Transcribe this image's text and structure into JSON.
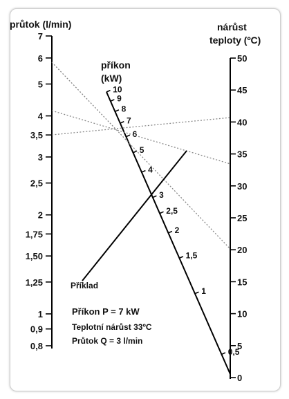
{
  "left_axis": {
    "title": "průtok (l/min)",
    "ticks": [
      {
        "label": "7",
        "value": 7
      },
      {
        "label": "6",
        "value": 6
      },
      {
        "label": "5",
        "value": 5
      },
      {
        "label": "4",
        "value": 4
      },
      {
        "label": "3,5",
        "value": 3.5
      },
      {
        "label": "3",
        "value": 3
      },
      {
        "label": "2,5",
        "value": 2.5
      },
      {
        "label": "2",
        "value": 2
      },
      {
        "label": "1,75",
        "value": 1.75
      },
      {
        "label": "1,50",
        "value": 1.5
      },
      {
        "label": "1,25",
        "value": 1.25
      },
      {
        "label": "1",
        "value": 1
      },
      {
        "label": "0,9",
        "value": 0.9
      },
      {
        "label": "0,8",
        "value": 0.8
      }
    ]
  },
  "middle_axis": {
    "title_line1": "příkon",
    "title_line2": "(kW)",
    "ticks": [
      {
        "label": "10",
        "value": 10
      },
      {
        "label": "9",
        "value": 9
      },
      {
        "label": "8",
        "value": 8
      },
      {
        "label": "7",
        "value": 7
      },
      {
        "label": "6",
        "value": 6
      },
      {
        "label": "5",
        "value": 5
      },
      {
        "label": "4",
        "value": 4
      },
      {
        "label": "3",
        "value": 3
      },
      {
        "label": "2,5",
        "value": 2.5
      },
      {
        "label": "2",
        "value": 2
      },
      {
        "label": "1,5",
        "value": 1.5
      },
      {
        "label": "1",
        "value": 1
      },
      {
        "label": "0,5",
        "value": 0.5
      }
    ]
  },
  "right_axis": {
    "title_line1": "nárůst",
    "title_line2": "teploty (ºC)",
    "ticks": [
      {
        "label": "50",
        "value": 50
      },
      {
        "label": "45",
        "value": 45
      },
      {
        "label": "40",
        "value": 40
      },
      {
        "label": "35",
        "value": 35
      },
      {
        "label": "30",
        "value": 30
      },
      {
        "label": "25",
        "value": 25
      },
      {
        "label": "20",
        "value": 20
      },
      {
        "label": "15",
        "value": 15
      },
      {
        "label": "10",
        "value": 10
      },
      {
        "label": "5",
        "value": 5
      },
      {
        "label": "0",
        "value": 0
      }
    ]
  },
  "example": {
    "label": "Příklad",
    "line1": "Příkon P = 7 kW",
    "line2": "Teplotní nárůst 33ºC",
    "line3": "Průtok Q = 3 l/min"
  },
  "colors": {
    "axis": "#000000",
    "dotted_line": "#888888",
    "frame_border": "#cfcfcf"
  }
}
